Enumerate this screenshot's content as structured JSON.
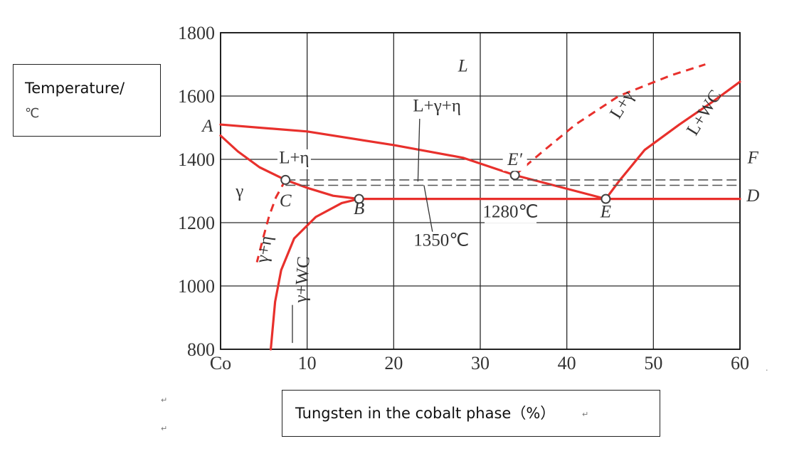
{
  "chart_data": {
    "type": "line",
    "title": "",
    "xlabel": "Tungsten in the cobalt phase（%）",
    "ylabel_line1": "Temperature/",
    "ylabel_line2": "℃",
    "xlim": [
      0,
      60
    ],
    "ylim": [
      800,
      1800
    ],
    "xticks": [
      0,
      10,
      20,
      30,
      40,
      50,
      60
    ],
    "xtick_labels": [
      "Co",
      "10",
      "20",
      "30",
      "40",
      "50",
      "60"
    ],
    "yticks": [
      800,
      1000,
      1200,
      1400,
      1600,
      1800
    ],
    "ytick_labels": [
      "800",
      "1000",
      "1200",
      "1400",
      "1600",
      "1800"
    ],
    "grid": true,
    "series": [
      {
        "style": "solid",
        "points": [
          [
            0,
            1510
          ],
          [
            10,
            1488
          ],
          [
            20,
            1445
          ],
          [
            28,
            1405
          ],
          [
            34,
            1350
          ]
        ]
      },
      {
        "style": "solid",
        "points": [
          [
            34,
            1350
          ],
          [
            44.5,
            1275
          ]
        ]
      },
      {
        "style": "solid",
        "points": [
          [
            0,
            1475
          ],
          [
            2,
            1425
          ],
          [
            4.5,
            1375
          ],
          [
            7.5,
            1335
          ]
        ]
      },
      {
        "style": "solid",
        "points": [
          [
            7.5,
            1335
          ],
          [
            10,
            1310
          ],
          [
            13,
            1285
          ],
          [
            16,
            1275
          ]
        ]
      },
      {
        "style": "solid",
        "points": [
          [
            16,
            1275
          ],
          [
            60,
            1275
          ]
        ]
      },
      {
        "style": "solid",
        "points": [
          [
            16,
            1275
          ],
          [
            14,
            1262
          ],
          [
            11,
            1218
          ],
          [
            8.5,
            1150
          ],
          [
            7,
            1050
          ],
          [
            6.3,
            950
          ],
          [
            5.8,
            800
          ]
        ]
      },
      {
        "style": "solid",
        "points": [
          [
            44.5,
            1275
          ],
          [
            46,
            1330
          ],
          [
            49,
            1430
          ],
          [
            53,
            1510
          ],
          [
            57,
            1585
          ],
          [
            60,
            1645
          ]
        ]
      },
      {
        "style": "dashed",
        "points": [
          [
            7.5,
            1335
          ],
          [
            6.4,
            1280
          ],
          [
            5.6,
            1220
          ],
          [
            4.9,
            1150
          ],
          [
            4.2,
            1075
          ]
        ]
      },
      {
        "style": "dashed",
        "points": [
          [
            34,
            1350
          ],
          [
            37,
            1420
          ],
          [
            41,
            1510
          ],
          [
            46,
            1600
          ],
          [
            52,
            1665
          ],
          [
            56,
            1700
          ]
        ]
      },
      {
        "style": "dashed-black",
        "points": [
          [
            7.5,
            1335
          ],
          [
            60,
            1335
          ]
        ]
      },
      {
        "style": "dashed-black",
        "points": [
          [
            7.5,
            1318
          ],
          [
            60,
            1318
          ]
        ]
      }
    ],
    "points": [
      {
        "x": 7.5,
        "y": 1335,
        "label": "C"
      },
      {
        "x": 16,
        "y": 1275,
        "label": "B"
      },
      {
        "x": 34,
        "y": 1350,
        "label": "E′"
      },
      {
        "x": 44.5,
        "y": 1275,
        "label": "E"
      }
    ],
    "annotations": [
      {
        "text": "L",
        "x": 28,
        "y": 1690,
        "italic": true
      },
      {
        "text": "A",
        "x": -1.5,
        "y": 1500,
        "italic": true
      },
      {
        "text": "L+γ+η",
        "x": 25,
        "y": 1565
      },
      {
        "text": "L+η",
        "x": 8.5,
        "y": 1400
      },
      {
        "text": "γ",
        "x": 2.2,
        "y": 1295
      },
      {
        "text": "C",
        "x": 7.5,
        "y": 1265,
        "italic": true
      },
      {
        "text": "B",
        "x": 16,
        "y": 1240,
        "italic": true
      },
      {
        "text": "1280℃",
        "x": 33.5,
        "y": 1230
      },
      {
        "text": "1350℃",
        "x": 25.5,
        "y": 1140
      },
      {
        "text": "E′",
        "x": 34,
        "y": 1395,
        "italic": true
      },
      {
        "text": "E",
        "x": 44.5,
        "y": 1230,
        "italic": true
      },
      {
        "text": "F",
        "x": 61.5,
        "y": 1400,
        "italic": true
      },
      {
        "text": "D",
        "x": 61.5,
        "y": 1280,
        "italic": true
      },
      {
        "text": "L+γ",
        "x": 46.5,
        "y": 1570,
        "rotate": -58
      },
      {
        "text": "L+WC",
        "x": 56,
        "y": 1545,
        "rotate": -58
      },
      {
        "text": "γ+η",
        "x": 5.2,
        "y": 1115,
        "rotate": -80
      },
      {
        "text": "γ+WC",
        "x": 9.6,
        "y": 1020,
        "rotate": -86
      }
    ]
  }
}
